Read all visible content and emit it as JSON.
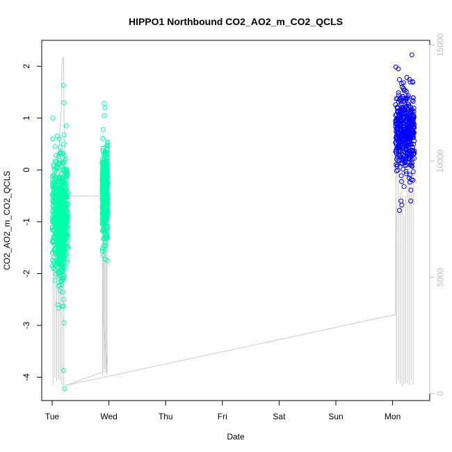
{
  "chart_data": {
    "type": "scatter",
    "title": "HIPPO1 Northbound CO2_AO2_m_CO2_QCLS",
    "xlabel": "Date",
    "ylabel": "CO2_AO2_m_CO2_QCLS",
    "x_ticks": [
      "Tue",
      "Wed",
      "Thu",
      "Fri",
      "Sat",
      "Sun",
      "Mon"
    ],
    "x_range_days": [
      -0.15,
      6.6
    ],
    "ylim": [
      -4.45,
      2.5
    ],
    "y_ticks": [
      -4,
      -3,
      -2,
      -1,
      0,
      1,
      2
    ],
    "y2_ticks": [
      0,
      5000,
      10000,
      15000
    ],
    "y2lim": [
      -300,
      15200
    ],
    "colors": {
      "flight1": "#00FFAA",
      "flight2": "#00FFAA",
      "flight3": "#0000FF",
      "altitude": "#C8C8C8"
    },
    "series": [
      {
        "clusters": [
          {
            "x": [
              0.0,
              0.28
            ],
            "y_center": -0.8,
            "y_sd": 0.55
          },
          {
            "x": [
              0.1,
              0.22
            ],
            "y_center": -1.2,
            "y_sd": 0.5
          }
        ],
        "outliers": [
          {
            "x": 0.01,
            "y": 1.0
          },
          {
            "x": 0.01,
            "y": 0.6
          },
          {
            "x": 0.05,
            "y": 0.45
          },
          {
            "x": 0.2,
            "y": 1.63
          },
          {
            "x": 0.21,
            "y": 0.68
          },
          {
            "x": 0.2,
            "y": 0.13
          },
          {
            "x": 0.2,
            "y": -2.5
          },
          {
            "x": 0.21,
            "y": -2.95
          },
          {
            "x": 0.2,
            "y": -3.87
          },
          {
            "x": 0.22,
            "y": -4.22
          },
          {
            "x": 0.0,
            "y": -1.85
          },
          {
            "x": 0.1,
            "y": -2.6
          }
        ]
      },
      {
        "clusters": [
          {
            "x": [
              0.88,
              0.98
            ],
            "y_center": -0.45,
            "y_sd": 0.45
          }
        ],
        "outliers": [
          {
            "x": 0.92,
            "y": 1.28
          },
          {
            "x": 0.93,
            "y": 1.2
          },
          {
            "x": 0.92,
            "y": 1.05
          },
          {
            "x": 0.9,
            "y": 0.78
          },
          {
            "x": 0.9,
            "y": -1.65
          },
          {
            "x": 0.97,
            "y": -1.75
          }
        ]
      },
      {
        "clusters": [
          {
            "x": [
              6.05,
              6.38
            ],
            "y_center": 0.75,
            "y_sd": 0.38
          }
        ],
        "outliers": [
          {
            "x": 6.34,
            "y": 2.22
          },
          {
            "x": 6.1,
            "y": 1.95
          },
          {
            "x": 6.35,
            "y": 1.7
          },
          {
            "x": 6.12,
            "y": -0.78
          },
          {
            "x": 6.15,
            "y": -0.6
          },
          {
            "x": 6.32,
            "y": -0.6
          }
        ]
      }
    ],
    "altitude": {
      "axis": "right",
      "trace": [
        [
          0.0,
          7200
        ],
        [
          0.02,
          8000
        ],
        [
          0.05,
          9000
        ],
        [
          0.08,
          9800
        ],
        [
          0.12,
          10500
        ],
        [
          0.16,
          12200
        ],
        [
          0.17,
          14000
        ],
        [
          0.19,
          14400
        ],
        [
          0.2,
          14500
        ],
        [
          0.22,
          8500
        ],
        [
          0.5,
          8500
        ],
        [
          0.89,
          8500
        ],
        [
          0.9,
          3000
        ],
        [
          0.95,
          1800
        ],
        [
          0.97,
          1000
        ],
        [
          0.24,
          350
        ],
        [
          6.05,
          3400
        ],
        [
          6.06,
          9500
        ]
      ],
      "dips": [
        {
          "x": [
            0.0,
            0.22
          ],
          "count": 7,
          "low": 250
        },
        {
          "x": [
            0.88,
            0.98
          ],
          "count": 5,
          "low": 700
        },
        {
          "x": [
            6.05,
            6.38
          ],
          "count": 10,
          "low": 250
        }
      ]
    }
  }
}
